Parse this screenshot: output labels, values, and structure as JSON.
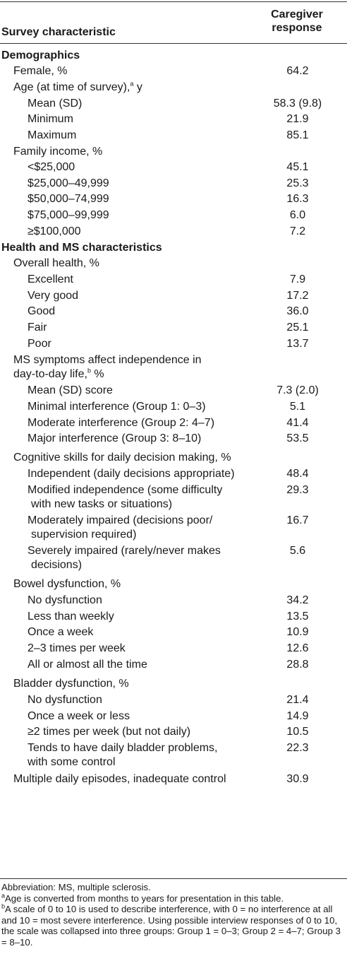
{
  "header": {
    "col1": "Survey characteristic",
    "col2_line1": "Caregiver",
    "col2_line2": "response"
  },
  "rows": [
    {
      "id": "r0",
      "level": "sec",
      "label": "Demographics",
      "value": "",
      "top": 0
    },
    {
      "id": "r1",
      "level": "l1",
      "label": "Female, %",
      "value": "64.2",
      "top": 0
    },
    {
      "id": "r2",
      "level": "l1",
      "label": "Age (at time of survey),",
      "sup": "a",
      "label_after": " y",
      "value": "",
      "top": 0
    },
    {
      "id": "r3",
      "level": "l2",
      "label": "Mean (SD)",
      "value": "58.3 (9.8)",
      "top": 0
    },
    {
      "id": "r4",
      "level": "l2",
      "label": "Minimum",
      "value": "21.9",
      "top": 0
    },
    {
      "id": "r5",
      "level": "l2",
      "label": "Maximum",
      "value": "85.1",
      "top": 0
    },
    {
      "id": "r6",
      "level": "l1",
      "label": "Family income, %",
      "value": "",
      "top": 0
    },
    {
      "id": "r7",
      "level": "l2",
      "label": "<$25,000",
      "value": "45.1",
      "top": 0
    },
    {
      "id": "r8",
      "level": "l2",
      "label": "$25,000–49,999",
      "value": "25.3",
      "top": 0
    },
    {
      "id": "r9",
      "level": "l2",
      "label": "$50,000–74,999",
      "value": "16.3",
      "top": 0
    },
    {
      "id": "r10",
      "level": "l2",
      "label": "$75,000–99,999",
      "value": "6.0",
      "top": 0
    },
    {
      "id": "r11",
      "level": "l2",
      "label": "≥$100,000",
      "value": "7.2",
      "top": 0
    },
    {
      "id": "r12",
      "level": "sec",
      "label": "Health and MS characteristics",
      "value": "",
      "top": 0
    },
    {
      "id": "r13",
      "level": "l1",
      "label": "Overall health, %",
      "value": "",
      "top": 0
    },
    {
      "id": "r14",
      "level": "l2",
      "label": "Excellent",
      "value": "7.9",
      "top": 0
    },
    {
      "id": "r15",
      "level": "l2",
      "label": "Very good",
      "value": "17.2",
      "top": 0
    },
    {
      "id": "r16",
      "level": "l2",
      "label": "Good",
      "value": "36.0",
      "top": 0
    },
    {
      "id": "r17",
      "level": "l2",
      "label": "Fair",
      "value": "25.1",
      "top": 0
    },
    {
      "id": "r18",
      "level": "l2",
      "label": "Poor",
      "value": "13.7",
      "top": 0
    },
    {
      "id": "r19a",
      "level": "l1",
      "label": "MS symptoms affect independence in",
      "value": "",
      "top": 0
    },
    {
      "id": "r19b",
      "level": "l1",
      "label": "day-to-day life,",
      "sup": "b",
      "label_after": " %",
      "value": "",
      "top": 0
    },
    {
      "id": "r20",
      "level": "l2",
      "label": "Mean (SD) score",
      "value": "7.3 (2.0)",
      "top": 0
    },
    {
      "id": "r21",
      "level": "l2",
      "label": "Minimal interference (Group 1: 0–3)",
      "value": "5.1",
      "top": 0
    },
    {
      "id": "r22",
      "level": "l2",
      "label": "Moderate interference (Group 2: 4–7)",
      "value": "41.4",
      "top": 0
    },
    {
      "id": "r23",
      "level": "l2",
      "label": "Major interference (Group 3: 8–10)",
      "value": "53.5",
      "top": 0
    },
    {
      "id": "r24",
      "level": "l1",
      "label": "Cognitive skills for daily decision making, %",
      "value": "",
      "top": 0
    },
    {
      "id": "r25",
      "level": "l2",
      "label": "Independent (daily decisions appropriate)",
      "value": "48.4",
      "top": 0
    },
    {
      "id": "r26a",
      "level": "l2",
      "label": "Modified independence (some difficulty",
      "value": "29.3",
      "top": 0
    },
    {
      "id": "r26b",
      "level": "l2c",
      "label": "with new tasks or situations)",
      "value": "",
      "top": 0
    },
    {
      "id": "r27a",
      "level": "l2",
      "label": "Moderately impaired (decisions poor/",
      "value": "16.7",
      "top": 0
    },
    {
      "id": "r27b",
      "level": "l2c",
      "label": "supervision required)",
      "value": "",
      "top": 0
    },
    {
      "id": "r28a",
      "level": "l2",
      "label": "Severely impaired (rarely/never makes",
      "value": "5.6",
      "top": 0
    },
    {
      "id": "r28b",
      "level": "l2c",
      "label": "decisions)",
      "value": "",
      "top": 0
    },
    {
      "id": "r29",
      "level": "l1",
      "label": "Bowel dysfunction, %",
      "value": "",
      "top": 0
    },
    {
      "id": "r30",
      "level": "l2",
      "label": "No dysfunction",
      "value": "34.2",
      "top": 0
    },
    {
      "id": "r31",
      "level": "l2",
      "label": "Less than weekly",
      "value": "13.5",
      "top": 0
    },
    {
      "id": "r32",
      "level": "l2",
      "label": "Once a week",
      "value": "10.9",
      "top": 0
    },
    {
      "id": "r33",
      "level": "l2",
      "label": "2–3 times per week",
      "value": "12.6",
      "top": 0
    },
    {
      "id": "r34",
      "level": "l2",
      "label": "All or almost all the time",
      "value": "28.8",
      "top": 0
    },
    {
      "id": "r35",
      "level": "l1",
      "label": "Bladder dysfunction, %",
      "value": "",
      "top": 0
    },
    {
      "id": "r36",
      "level": "l2",
      "label": "No dysfunction",
      "value": "21.4",
      "top": 0
    },
    {
      "id": "r37",
      "level": "l2",
      "label": "Once a week or less",
      "value": "14.9",
      "top": 0
    },
    {
      "id": "r38",
      "level": "l2",
      "label": "≥2 times per week (but not daily)",
      "value": "10.5",
      "top": 0
    },
    {
      "id": "r39a",
      "level": "l2",
      "label": "Tends to have daily bladder problems,",
      "value": "22.3",
      "top": 0
    },
    {
      "id": "r39b",
      "level": "l2",
      "label": "with some control",
      "value": "",
      "top": 0
    },
    {
      "id": "r40",
      "level": "l1",
      "label": "Multiple daily episodes, inadequate control",
      "value": "30.9",
      "top": 0
    }
  ],
  "footnotes": {
    "abbrev": "Abbreviation: MS, multiple sclerosis.",
    "a_mark": "a",
    "a_text": "Age is converted from months to years for presentation in this table.",
    "b_mark": "b",
    "b_text": "A scale of 0 to 10 is used to describe interference, with 0 = no interference at all and 10 = most severe interference. Using possible interview responses of 0 to 10, the scale was collapsed into three groups: Group 1 = 0–3; Group 2 = 4–7; Group 3 = 8–10."
  }
}
